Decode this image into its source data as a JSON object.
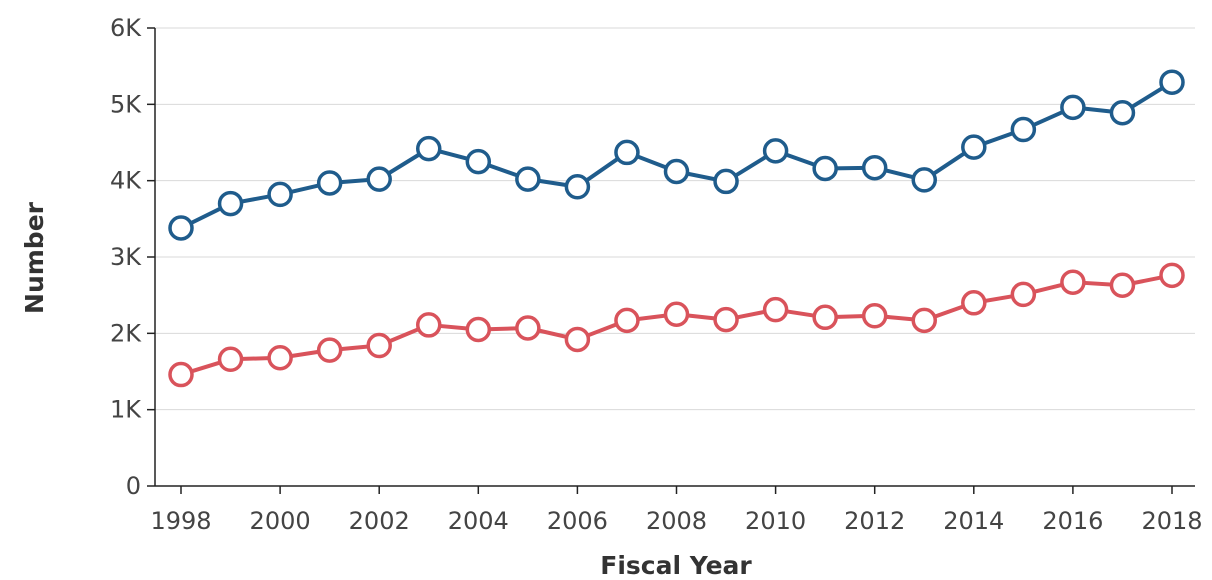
{
  "chart_data": {
    "type": "line",
    "xlabel": "Fiscal Year",
    "ylabel": "Number",
    "x": [
      1998,
      1999,
      2000,
      2001,
      2002,
      2003,
      2004,
      2005,
      2006,
      2007,
      2008,
      2009,
      2010,
      2011,
      2012,
      2013,
      2014,
      2015,
      2016,
      2017,
      2018
    ],
    "xtick_labels": [
      "1998",
      "2000",
      "2002",
      "2004",
      "2006",
      "2008",
      "2010",
      "2012",
      "2014",
      "2016",
      "2018"
    ],
    "ytick_labels": [
      "0",
      "1K",
      "2K",
      "3K",
      "4K",
      "5K",
      "6K"
    ],
    "ylim": [
      0,
      6000
    ],
    "grid": true,
    "series": [
      {
        "color": "#1f5c8c",
        "values": [
          3380,
          3700,
          3820,
          3970,
          4020,
          4420,
          4250,
          4020,
          3920,
          4370,
          4120,
          3990,
          4390,
          4160,
          4170,
          4010,
          4440,
          4670,
          4960,
          4890,
          5290
        ]
      },
      {
        "color": "#d9535b",
        "values": [
          1460,
          1660,
          1680,
          1780,
          1840,
          2110,
          2050,
          2070,
          1920,
          2170,
          2250,
          2180,
          2310,
          2210,
          2230,
          2170,
          2400,
          2510,
          2670,
          2630,
          2760
        ]
      }
    ]
  }
}
